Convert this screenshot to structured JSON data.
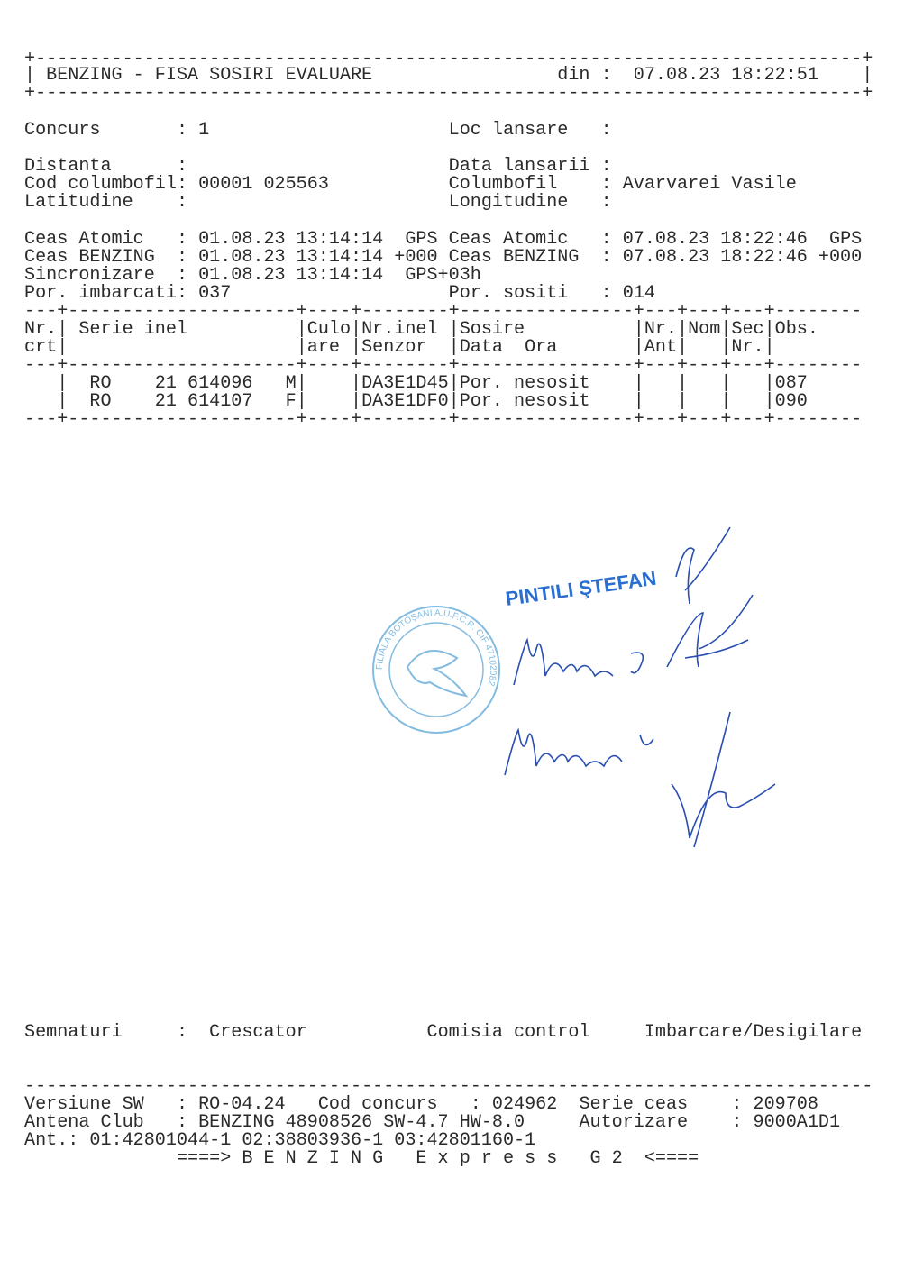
{
  "header": {
    "border": "+----------------------------------------------------------------------------+",
    "title": "| BENZING - FISA SOSIRI EVALUARE",
    "date_label": "din :",
    "date_value": "07.08.23 18:22:51",
    "end": "|"
  },
  "info": {
    "concurs": {
      "label": "Concurs",
      "value": "1"
    },
    "loc_lansare": {
      "label": "Loc lansare",
      "value": ""
    },
    "distanta": {
      "label": "Distanta",
      "value": ""
    },
    "data_lansarii": {
      "label": "Data lansarii",
      "value": ""
    },
    "cod_columbofil": {
      "label": "Cod columbofil",
      "value": "00001 025563"
    },
    "columbofil": {
      "label": "Columbofil",
      "value": "Avarvarei Vasile"
    },
    "latitudine": {
      "label": "Latitudine",
      "value": ""
    },
    "longitudine": {
      "label": "Longitudine",
      "value": ""
    },
    "colon": ":"
  },
  "clocks": {
    "left": [
      {
        "label": "Ceas Atomic",
        "value": "01.08.23 13:14:14",
        "suffix": "GPS"
      },
      {
        "label": "Ceas BENZING",
        "value": "01.08.23 13:14:14",
        "suffix": "+000"
      },
      {
        "label": "Sincronizare",
        "value": "01.08.23 13:14:14",
        "suffix": "GPS+03h"
      }
    ],
    "right": [
      {
        "label": "Ceas Atomic",
        "value": "07.08.23 18:22:46",
        "suffix": "GPS"
      },
      {
        "label": "Ceas BENZING",
        "value": "07.08.23 18:22:46",
        "suffix": "+000"
      }
    ],
    "por_imbarcati": {
      "label": "Por. imbarcati",
      "value": "037"
    },
    "por_sositi": {
      "label": "Por. sositi",
      "value": "014"
    }
  },
  "table": {
    "separator": "---+---------------------+----+--------+----------------+---+---+---+--------",
    "headers1": [
      "Nr.",
      "Serie inel",
      "Culo",
      "Nr.inel",
      "Sosire",
      "Nr.",
      "Nom",
      "Sec",
      "Obs."
    ],
    "headers2": [
      "crt",
      "",
      "are",
      "Senzor",
      "Data  Ora",
      "Ant",
      "",
      "Nr.",
      ""
    ],
    "rows": [
      {
        "country": "RO",
        "year": "21",
        "ring": "614096",
        "sex": "M",
        "color": "",
        "sensor": "DA3E1D45",
        "arrival": "Por. nesosit",
        "obs": "087"
      },
      {
        "country": "RO",
        "year": "21",
        "ring": "614107",
        "sex": "F",
        "color": "",
        "sensor": "DA3E1DF0",
        "arrival": "Por. nesosit",
        "obs": "090"
      }
    ]
  },
  "stamp": {
    "name": "PINTILI ŞTEFAN",
    "seal_text": "FILIALA BOTOŞANI A.U.F.C.R. CIF 47102082",
    "handwritten": [
      "Munteanu B.",
      "Moraloche V."
    ],
    "ink_color": "#2a6fd0"
  },
  "footer": {
    "semnaturi": "Semnaturi",
    "colon": ":",
    "crescator": "Crescator",
    "comisia": "Comisia control",
    "imbarcare": "Imbarcare/Desigilare",
    "dashes": "------------------------------------------------------------------------------",
    "versiune_label": "Versiune SW",
    "versiune_value": ": RO-04.24",
    "cod_concurs_label": "Cod concurs",
    "cod_concurs_value": ": 024962",
    "serie_ceas_label": "Serie ceas",
    "serie_ceas_value": ": 209708",
    "antena_label": "Antena Club",
    "antena_value": ": BENZING 48908526 SW-4.7 HW-8.0",
    "autorizare_label": "Autorizare",
    "autorizare_value": ": 9000A1D1",
    "ant_line": "Ant.: 01:42801044-1 02:38803936-1 03:42801160-1",
    "banner": "====> B E N Z I N G   E x p r e s s   G 2  <===="
  }
}
